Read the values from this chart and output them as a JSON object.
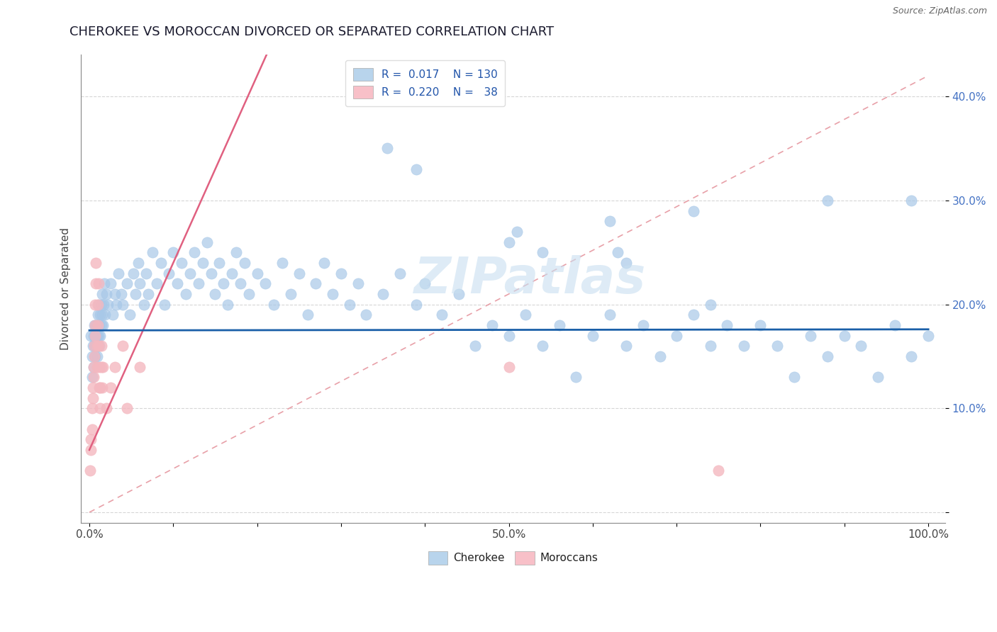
{
  "title": "CHEROKEE VS MOROCCAN DIVORCED OR SEPARATED CORRELATION CHART",
  "source_text": "Source: ZipAtlas.com",
  "ylabel": "Divorced or Separated",
  "cherokee_color": "#a8c8e8",
  "moroccan_color": "#f4b8c0",
  "trend_cherokee_color": "#1a5fa8",
  "trend_moroccan_color": "#e06080",
  "trend_dash_color": "#e8a0a8",
  "watermark_color": "#c8dff0",
  "cherokee_points": [
    [
      0.002,
      0.17
    ],
    [
      0.003,
      0.15
    ],
    [
      0.003,
      0.13
    ],
    [
      0.004,
      0.16
    ],
    [
      0.005,
      0.17
    ],
    [
      0.005,
      0.14
    ],
    [
      0.006,
      0.16
    ],
    [
      0.006,
      0.18
    ],
    [
      0.007,
      0.15
    ],
    [
      0.007,
      0.17
    ],
    [
      0.008,
      0.16
    ],
    [
      0.008,
      0.18
    ],
    [
      0.009,
      0.15
    ],
    [
      0.009,
      0.17
    ],
    [
      0.01,
      0.18
    ],
    [
      0.01,
      0.16
    ],
    [
      0.01,
      0.19
    ],
    [
      0.011,
      0.17
    ],
    [
      0.011,
      0.2
    ],
    [
      0.012,
      0.18
    ],
    [
      0.012,
      0.16
    ],
    [
      0.013,
      0.19
    ],
    [
      0.013,
      0.17
    ],
    [
      0.014,
      0.2
    ],
    [
      0.014,
      0.18
    ],
    [
      0.015,
      0.19
    ],
    [
      0.015,
      0.21
    ],
    [
      0.016,
      0.18
    ],
    [
      0.017,
      0.2
    ],
    [
      0.018,
      0.22
    ],
    [
      0.019,
      0.19
    ],
    [
      0.02,
      0.21
    ],
    [
      0.022,
      0.2
    ],
    [
      0.025,
      0.22
    ],
    [
      0.028,
      0.19
    ],
    [
      0.03,
      0.21
    ],
    [
      0.032,
      0.2
    ],
    [
      0.035,
      0.23
    ],
    [
      0.038,
      0.21
    ],
    [
      0.04,
      0.2
    ],
    [
      0.045,
      0.22
    ],
    [
      0.048,
      0.19
    ],
    [
      0.052,
      0.23
    ],
    [
      0.055,
      0.21
    ],
    [
      0.058,
      0.24
    ],
    [
      0.06,
      0.22
    ],
    [
      0.065,
      0.2
    ],
    [
      0.068,
      0.23
    ],
    [
      0.07,
      0.21
    ],
    [
      0.075,
      0.25
    ],
    [
      0.08,
      0.22
    ],
    [
      0.085,
      0.24
    ],
    [
      0.09,
      0.2
    ],
    [
      0.095,
      0.23
    ],
    [
      0.1,
      0.25
    ],
    [
      0.105,
      0.22
    ],
    [
      0.11,
      0.24
    ],
    [
      0.115,
      0.21
    ],
    [
      0.12,
      0.23
    ],
    [
      0.125,
      0.25
    ],
    [
      0.13,
      0.22
    ],
    [
      0.135,
      0.24
    ],
    [
      0.14,
      0.26
    ],
    [
      0.145,
      0.23
    ],
    [
      0.15,
      0.21
    ],
    [
      0.155,
      0.24
    ],
    [
      0.16,
      0.22
    ],
    [
      0.165,
      0.2
    ],
    [
      0.17,
      0.23
    ],
    [
      0.175,
      0.25
    ],
    [
      0.18,
      0.22
    ],
    [
      0.185,
      0.24
    ],
    [
      0.19,
      0.21
    ],
    [
      0.2,
      0.23
    ],
    [
      0.21,
      0.22
    ],
    [
      0.22,
      0.2
    ],
    [
      0.23,
      0.24
    ],
    [
      0.24,
      0.21
    ],
    [
      0.25,
      0.23
    ],
    [
      0.26,
      0.19
    ],
    [
      0.27,
      0.22
    ],
    [
      0.28,
      0.24
    ],
    [
      0.29,
      0.21
    ],
    [
      0.3,
      0.23
    ],
    [
      0.31,
      0.2
    ],
    [
      0.32,
      0.22
    ],
    [
      0.33,
      0.19
    ],
    [
      0.35,
      0.21
    ],
    [
      0.37,
      0.23
    ],
    [
      0.39,
      0.2
    ],
    [
      0.4,
      0.22
    ],
    [
      0.42,
      0.19
    ],
    [
      0.44,
      0.21
    ],
    [
      0.46,
      0.16
    ],
    [
      0.48,
      0.18
    ],
    [
      0.5,
      0.17
    ],
    [
      0.52,
      0.19
    ],
    [
      0.54,
      0.16
    ],
    [
      0.56,
      0.18
    ],
    [
      0.58,
      0.13
    ],
    [
      0.6,
      0.17
    ],
    [
      0.62,
      0.19
    ],
    [
      0.64,
      0.16
    ],
    [
      0.66,
      0.18
    ],
    [
      0.68,
      0.15
    ],
    [
      0.7,
      0.17
    ],
    [
      0.72,
      0.19
    ],
    [
      0.74,
      0.16
    ],
    [
      0.76,
      0.18
    ],
    [
      0.78,
      0.16
    ],
    [
      0.8,
      0.18
    ],
    [
      0.82,
      0.16
    ],
    [
      0.84,
      0.13
    ],
    [
      0.86,
      0.17
    ],
    [
      0.88,
      0.15
    ],
    [
      0.9,
      0.17
    ],
    [
      0.92,
      0.16
    ],
    [
      0.94,
      0.13
    ],
    [
      0.96,
      0.18
    ],
    [
      0.98,
      0.15
    ],
    [
      1.0,
      0.17
    ],
    [
      0.355,
      0.35
    ],
    [
      0.39,
      0.33
    ],
    [
      0.5,
      0.26
    ],
    [
      0.51,
      0.27
    ],
    [
      0.54,
      0.25
    ],
    [
      0.62,
      0.28
    ],
    [
      0.63,
      0.25
    ],
    [
      0.64,
      0.24
    ],
    [
      0.72,
      0.29
    ],
    [
      0.74,
      0.2
    ],
    [
      0.88,
      0.3
    ],
    [
      0.98,
      0.3
    ]
  ],
  "moroccan_points": [
    [
      0.001,
      0.04
    ],
    [
      0.002,
      0.06
    ],
    [
      0.002,
      0.07
    ],
    [
      0.003,
      0.08
    ],
    [
      0.003,
      0.1
    ],
    [
      0.004,
      0.11
    ],
    [
      0.004,
      0.12
    ],
    [
      0.005,
      0.13
    ],
    [
      0.005,
      0.14
    ],
    [
      0.006,
      0.15
    ],
    [
      0.006,
      0.16
    ],
    [
      0.007,
      0.17
    ],
    [
      0.007,
      0.18
    ],
    [
      0.007,
      0.2
    ],
    [
      0.008,
      0.22
    ],
    [
      0.008,
      0.24
    ],
    [
      0.009,
      0.16
    ],
    [
      0.009,
      0.14
    ],
    [
      0.01,
      0.18
    ],
    [
      0.01,
      0.2
    ],
    [
      0.011,
      0.22
    ],
    [
      0.011,
      0.16
    ],
    [
      0.012,
      0.14
    ],
    [
      0.012,
      0.12
    ],
    [
      0.013,
      0.1
    ],
    [
      0.013,
      0.12
    ],
    [
      0.014,
      0.14
    ],
    [
      0.014,
      0.16
    ],
    [
      0.015,
      0.12
    ],
    [
      0.016,
      0.14
    ],
    [
      0.02,
      0.1
    ],
    [
      0.025,
      0.12
    ],
    [
      0.03,
      0.14
    ],
    [
      0.04,
      0.16
    ],
    [
      0.045,
      0.1
    ],
    [
      0.06,
      0.14
    ],
    [
      0.5,
      0.14
    ],
    [
      0.75,
      0.04
    ]
  ]
}
